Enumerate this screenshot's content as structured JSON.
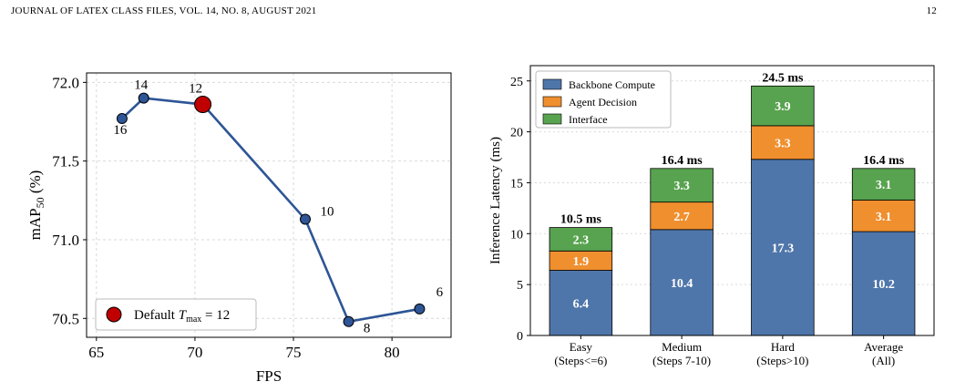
{
  "header": {
    "journal": "JOURNAL OF LATEX CLASS FILES, VOL. 14, NO. 8, AUGUST 2021",
    "page_number": "12"
  },
  "chart_data": [
    {
      "type": "line",
      "xlabel": "FPS",
      "ylabel": "mAP50 (%)",
      "xlim": [
        64.5,
        83
      ],
      "ylim": [
        70.38,
        72.06
      ],
      "xticks": [
        65,
        70,
        75,
        80
      ],
      "yticks": [
        70.5,
        71.0,
        71.5,
        72.0
      ],
      "ytick_labels": [
        "70.5",
        "71.0",
        "71.5",
        "72.0"
      ],
      "grid": true,
      "series_color": "#2e5596",
      "highlight_color": "#c00000",
      "points": [
        {
          "label": "16",
          "x": 66.3,
          "y": 71.77
        },
        {
          "label": "14",
          "x": 67.4,
          "y": 71.9
        },
        {
          "label": "12",
          "x": 70.4,
          "y": 71.86
        },
        {
          "label": "10",
          "x": 75.6,
          "y": 71.13
        },
        {
          "label": "8",
          "x": 77.8,
          "y": 70.48
        },
        {
          "label": "6",
          "x": 81.4,
          "y": 70.56
        }
      ],
      "highlight_label": "12",
      "legend": {
        "placement": "lower-left",
        "entries": [
          "Default T_max = 12"
        ]
      }
    },
    {
      "type": "bar",
      "stacked": true,
      "ylabel": "Inference Latency (ms)",
      "ylim": [
        0,
        26.5
      ],
      "yticks": [
        0,
        5,
        10,
        15,
        20,
        25
      ],
      "grid": true,
      "categories": [
        {
          "line1": "Easy",
          "line2": "(Steps<=6)"
        },
        {
          "line1": "Medium",
          "line2": "(Steps 7-10)"
        },
        {
          "line1": "Hard",
          "line2": "(Steps>10)"
        },
        {
          "line1": "Average",
          "line2": "(All)"
        }
      ],
      "series": [
        {
          "name": "Backbone Compute",
          "color": "#4f76aa",
          "values": [
            6.4,
            10.4,
            17.3,
            10.2
          ],
          "labels": [
            "6.4",
            "10.4",
            "17.3",
            "10.2"
          ]
        },
        {
          "name": "Agent Decision",
          "color": "#f08f2e",
          "values": [
            1.9,
            2.7,
            3.3,
            3.1
          ],
          "labels": [
            "1.9",
            "2.7",
            "3.3",
            "3.1"
          ]
        },
        {
          "name": "Interface",
          "color": "#58a34f",
          "values": [
            2.3,
            3.3,
            3.9,
            3.1
          ],
          "labels": [
            "2.3",
            "3.3",
            "3.9",
            "3.1"
          ]
        }
      ],
      "totals": [
        "10.5 ms",
        "16.4 ms",
        "24.5 ms",
        "16.4 ms"
      ],
      "legend": {
        "placement": "top-left"
      }
    }
  ]
}
